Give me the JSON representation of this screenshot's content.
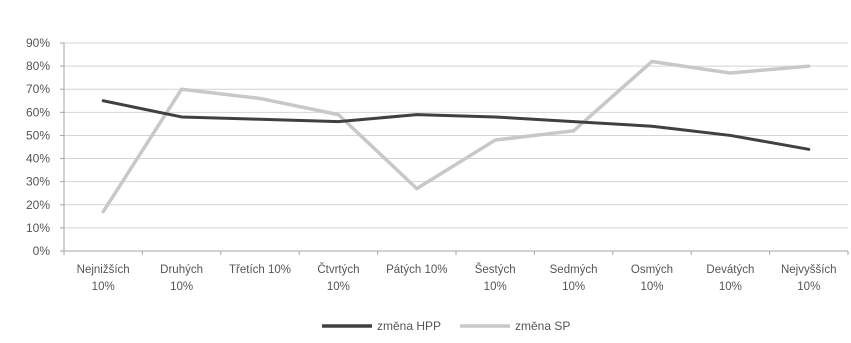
{
  "chart_data": {
    "type": "line",
    "categories": [
      [
        "Nejnižších",
        "10%"
      ],
      [
        "Druhých",
        "10%"
      ],
      [
        "Třetích 10%"
      ],
      [
        "Čtvrtých",
        "10%"
      ],
      [
        "Pátých 10%"
      ],
      [
        "Šestých",
        "10%"
      ],
      [
        "Sedmých",
        "10%"
      ],
      [
        "Osmých",
        "10%"
      ],
      [
        "Devátých",
        "10%"
      ],
      [
        "Nejvyšších",
        "10%"
      ]
    ],
    "series": [
      {
        "name": "změna HPP",
        "color": "#404040",
        "values": [
          65,
          58,
          57,
          56,
          59,
          58,
          56,
          54,
          50,
          44
        ]
      },
      {
        "name": "změna SP",
        "color": "#c8c8c8",
        "values": [
          17,
          70,
          66,
          59,
          27,
          48,
          52,
          82,
          77,
          80
        ]
      }
    ],
    "ylim": [
      0,
      90
    ],
    "yticks": [
      0,
      10,
      20,
      30,
      40,
      50,
      60,
      70,
      80,
      90
    ],
    "ytick_labels": [
      "0%",
      "10%",
      "20%",
      "30%",
      "40%",
      "50%",
      "60%",
      "70%",
      "80%",
      "90%"
    ],
    "grid": true,
    "legend_position": "bottom"
  }
}
